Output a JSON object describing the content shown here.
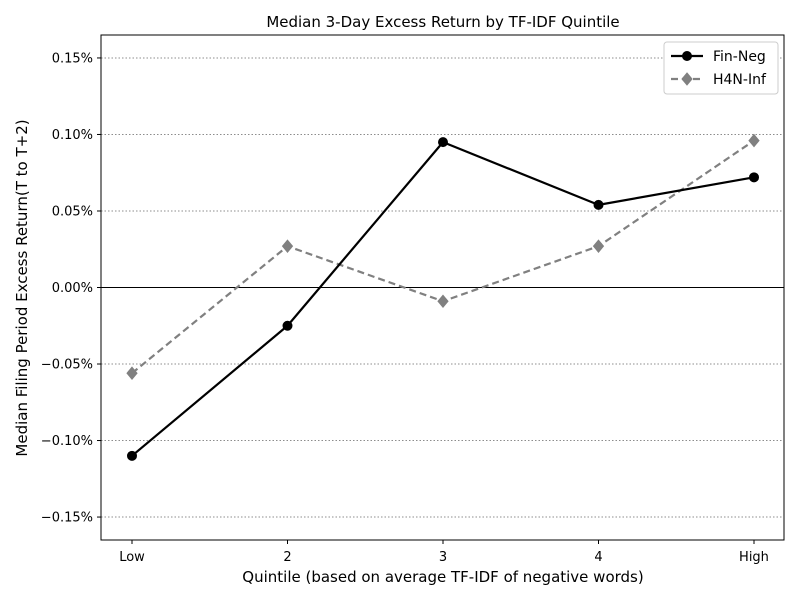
{
  "chart_data": {
    "type": "line",
    "title": "Median 3-Day Excess Return by TF-IDF Quintile",
    "xlabel": "Quintile (based on average TF-IDF of negative words)",
    "ylabel": "Median Filing Period Excess Return(T to T+2)",
    "categories": [
      "Low",
      "2",
      "3",
      "4",
      "High"
    ],
    "ylim": [
      -0.165,
      0.165
    ],
    "yticks": [
      -0.15,
      -0.1,
      -0.05,
      0.0,
      0.05,
      0.1,
      0.15
    ],
    "ytick_labels": [
      "−0.15%",
      "−0.10%",
      "−0.05%",
      "0.00%",
      "0.05%",
      "0.10%",
      "0.15%"
    ],
    "y_unit": "%",
    "grid": "y-dotted",
    "reference_line": 0.0,
    "legend_position": "top-right",
    "series": [
      {
        "name": "Fin-Neg",
        "values": [
          -0.11,
          -0.025,
          0.095,
          0.054,
          0.072
        ],
        "color": "#000000",
        "line_style": "solid",
        "marker": "circle"
      },
      {
        "name": "H4N-Inf",
        "values": [
          -0.056,
          0.027,
          -0.009,
          0.027,
          0.096
        ],
        "color": "#808080",
        "line_style": "dashed",
        "marker": "diamond"
      }
    ]
  }
}
